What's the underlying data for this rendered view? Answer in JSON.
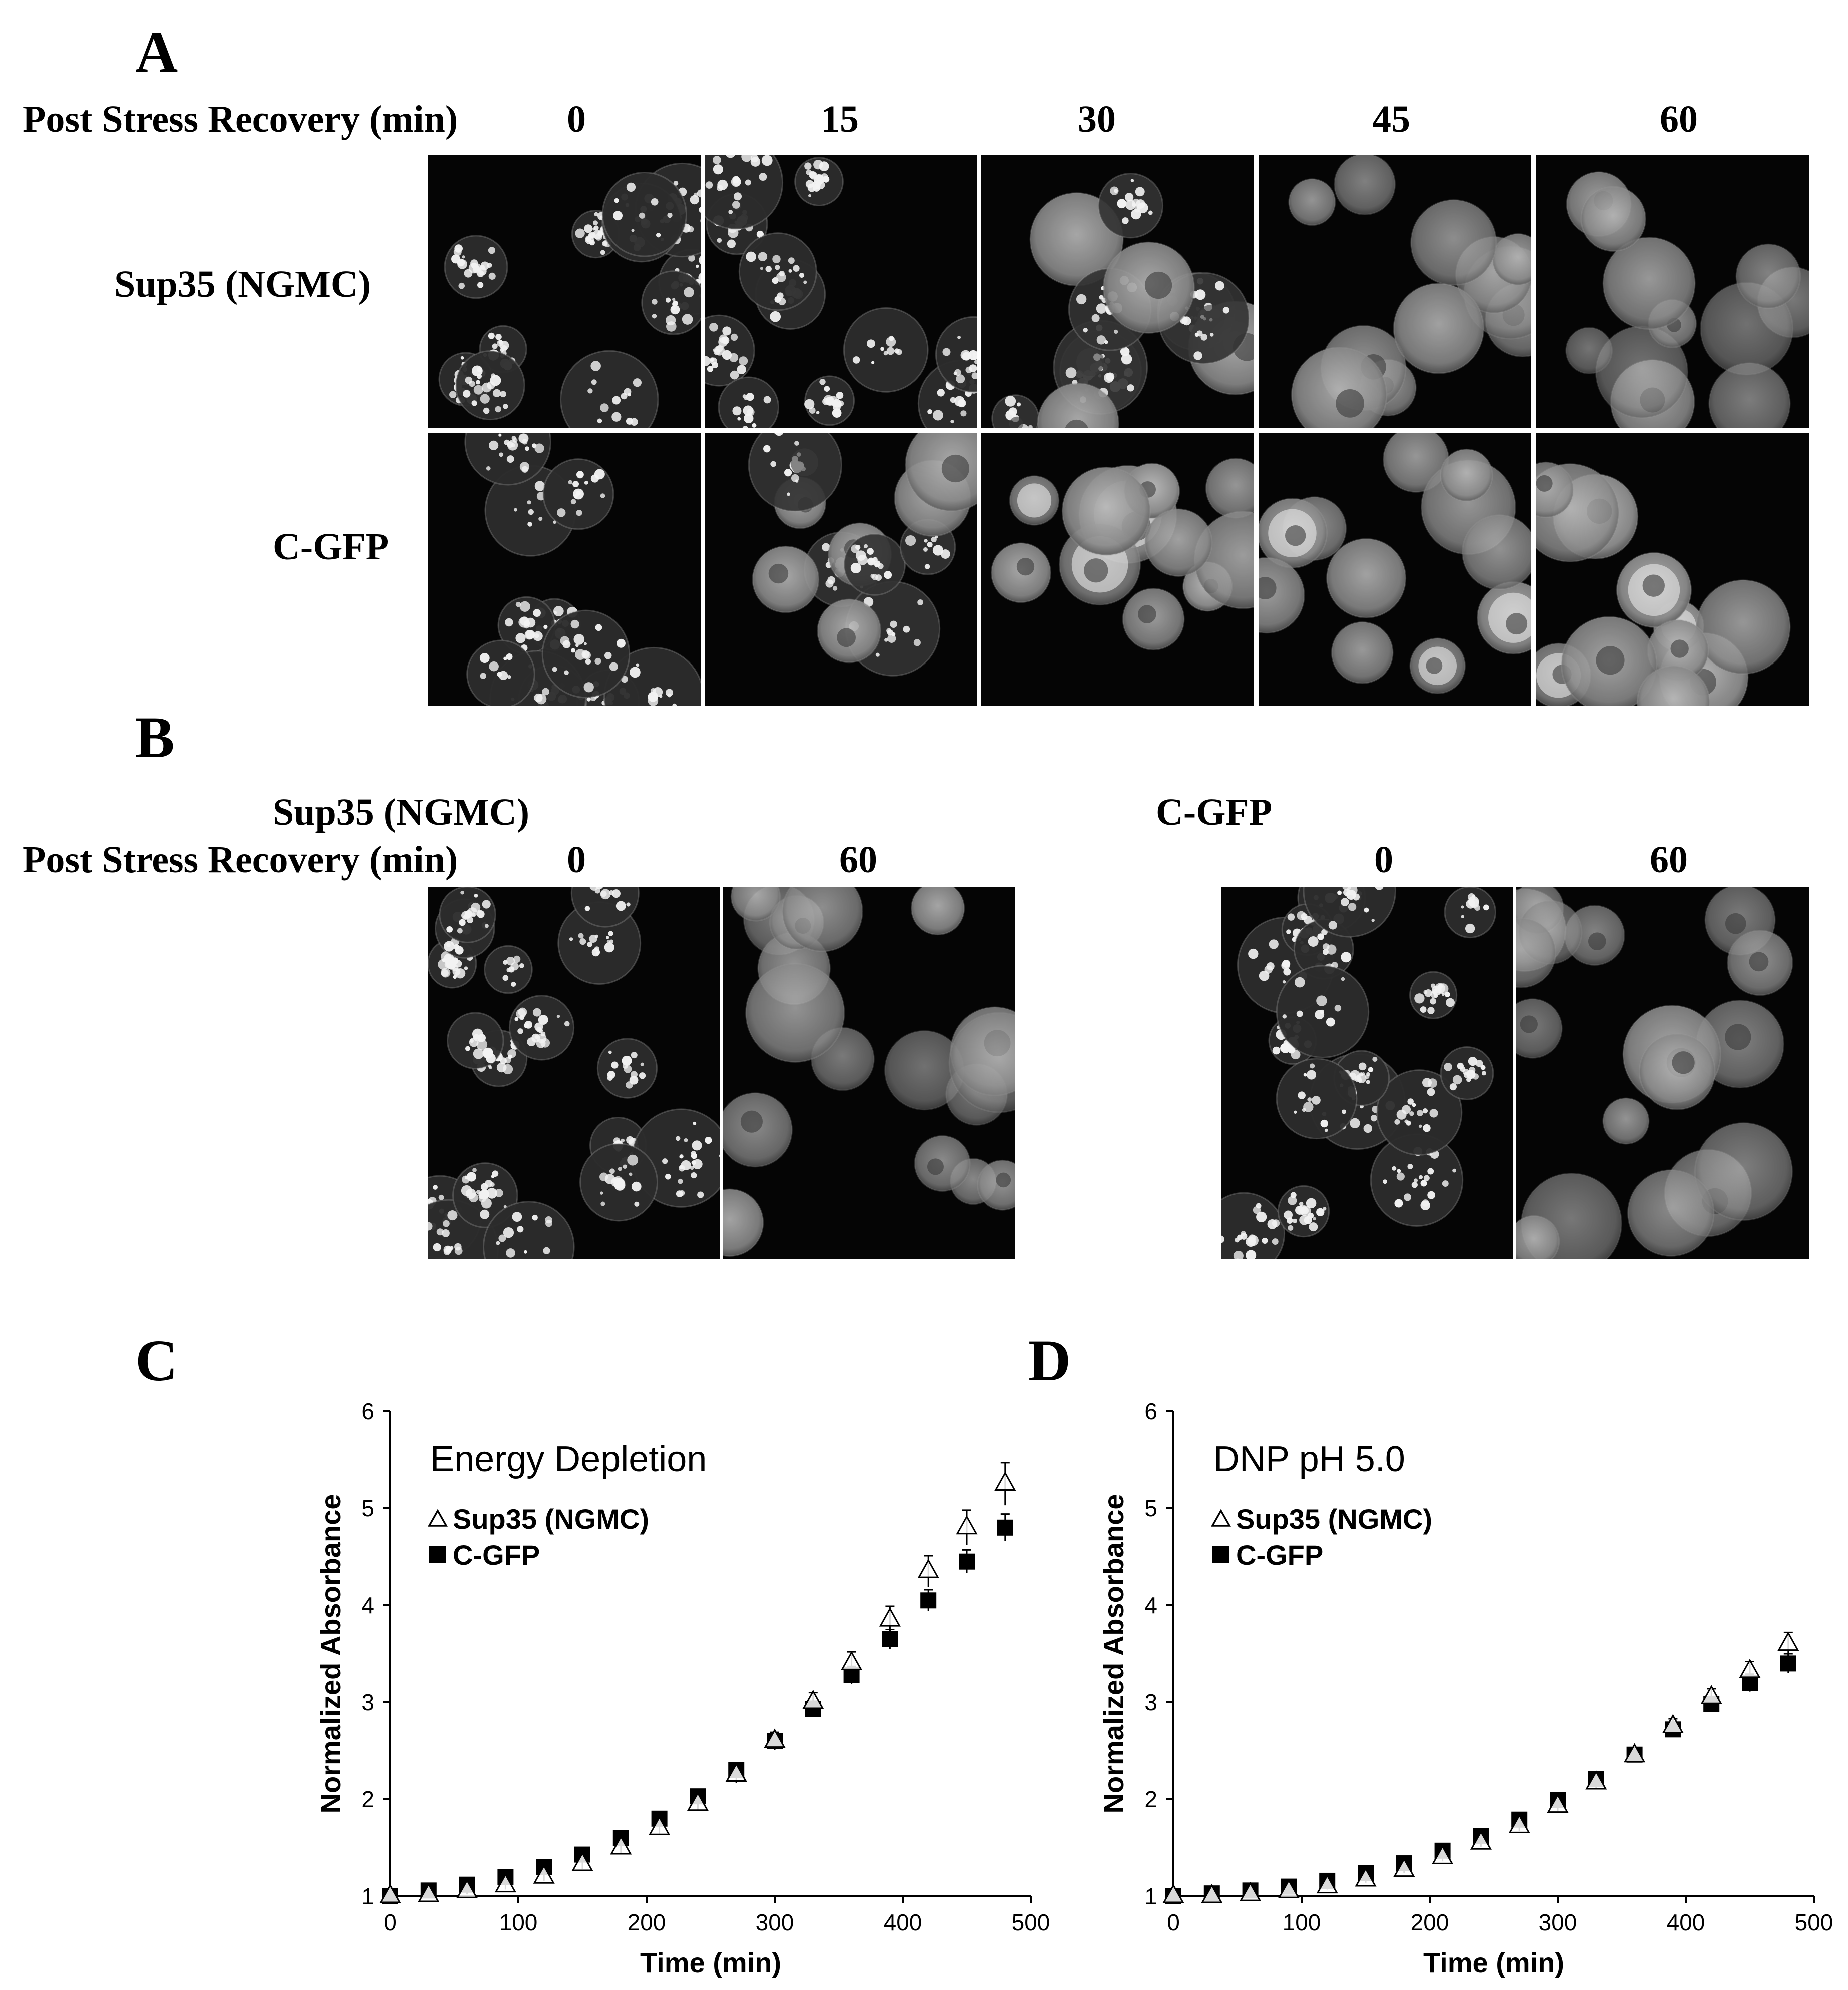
{
  "panel_a": {
    "letter": "A",
    "header_label": "Post Stress Recovery (min)",
    "timepoints": [
      "0",
      "15",
      "30",
      "45",
      "60"
    ],
    "rows": [
      {
        "label": "Sup35 (NGMC)",
        "states": [
          "punctate",
          "punctate",
          "mixed",
          "diffuse",
          "diffuse"
        ]
      },
      {
        "label": "C-GFP",
        "states": [
          "punctate",
          "mixed",
          "diffuse-bright",
          "diffuse-bright",
          "diffuse-bright"
        ]
      }
    ]
  },
  "panel_b": {
    "letter": "B",
    "header_label": "Post Stress Recovery (min)",
    "groups": [
      {
        "title": "Sup35 (NGMC)",
        "timepoints": [
          "0",
          "60"
        ],
        "states": [
          "punctate",
          "diffuse"
        ]
      },
      {
        "title": "C-GFP",
        "timepoints": [
          "0",
          "60"
        ],
        "states": [
          "punctate",
          "diffuse"
        ]
      }
    ]
  },
  "panel_c": {
    "letter": "C"
  },
  "panel_d": {
    "letter": "D"
  },
  "chart_data": [
    {
      "type": "scatter",
      "title": "Energy Depletion",
      "xlabel": "Time (min)",
      "ylabel": "Normalized Absorbance",
      "xlim": [
        0,
        500
      ],
      "ylim": [
        1,
        6
      ],
      "xticks": [
        0,
        100,
        200,
        300,
        400,
        500
      ],
      "yticks": [
        1,
        2,
        3,
        4,
        5,
        6
      ],
      "legend_position": "top-left",
      "series": [
        {
          "name": "Sup35 (NGMC)",
          "marker": "open-triangle",
          "x": [
            0,
            30,
            60,
            90,
            120,
            150,
            180,
            210,
            240,
            270,
            300,
            330,
            360,
            390,
            420,
            450,
            480
          ],
          "y": [
            1.0,
            1.01,
            1.05,
            1.11,
            1.2,
            1.33,
            1.5,
            1.7,
            1.95,
            2.25,
            2.6,
            3.0,
            3.4,
            3.85,
            4.35,
            4.8,
            5.25
          ],
          "err": [
            0,
            0.03,
            0.03,
            0.04,
            0.04,
            0.05,
            0.06,
            0.06,
            0.07,
            0.08,
            0.09,
            0.1,
            0.12,
            0.14,
            0.16,
            0.18,
            0.22
          ]
        },
        {
          "name": "C-GFP",
          "marker": "filled-square",
          "x": [
            0,
            30,
            60,
            90,
            120,
            150,
            180,
            210,
            240,
            270,
            300,
            330,
            360,
            390,
            420,
            450,
            480
          ],
          "y": [
            1.0,
            1.06,
            1.12,
            1.2,
            1.3,
            1.43,
            1.6,
            1.8,
            2.03,
            2.3,
            2.6,
            2.93,
            3.28,
            3.65,
            4.05,
            4.45,
            4.8
          ],
          "err": [
            0,
            0.02,
            0.02,
            0.03,
            0.03,
            0.04,
            0.04,
            0.05,
            0.05,
            0.06,
            0.07,
            0.08,
            0.09,
            0.1,
            0.11,
            0.12,
            0.14
          ]
        }
      ]
    },
    {
      "type": "scatter",
      "title": "DNP pH 5.0",
      "xlabel": "Time (min)",
      "ylabel": "Normalized Absorbance",
      "xlim": [
        0,
        500
      ],
      "ylim": [
        1,
        6
      ],
      "xticks": [
        0,
        100,
        200,
        300,
        400,
        500
      ],
      "yticks": [
        1,
        2,
        3,
        4,
        5,
        6
      ],
      "legend_position": "top-left",
      "series": [
        {
          "name": "Sup35 (NGMC)",
          "marker": "open-triangle",
          "x": [
            0,
            30,
            60,
            90,
            120,
            150,
            180,
            210,
            240,
            270,
            300,
            330,
            360,
            390,
            420,
            450,
            480
          ],
          "y": [
            1.0,
            1.0,
            1.02,
            1.05,
            1.1,
            1.17,
            1.27,
            1.4,
            1.55,
            1.72,
            1.93,
            2.17,
            2.45,
            2.75,
            3.05,
            3.32,
            3.6
          ],
          "err": [
            0,
            0.02,
            0.02,
            0.02,
            0.03,
            0.03,
            0.03,
            0.04,
            0.04,
            0.05,
            0.05,
            0.06,
            0.07,
            0.08,
            0.09,
            0.1,
            0.12
          ]
        },
        {
          "name": "C-GFP",
          "marker": "filled-square",
          "x": [
            0,
            30,
            60,
            90,
            120,
            150,
            180,
            210,
            240,
            270,
            300,
            330,
            360,
            390,
            420,
            450,
            480
          ],
          "y": [
            1.0,
            1.03,
            1.06,
            1.1,
            1.16,
            1.24,
            1.34,
            1.47,
            1.62,
            1.79,
            1.99,
            2.21,
            2.46,
            2.72,
            2.98,
            3.2,
            3.4
          ],
          "err": [
            0,
            0.02,
            0.02,
            0.02,
            0.02,
            0.03,
            0.03,
            0.03,
            0.04,
            0.04,
            0.05,
            0.05,
            0.06,
            0.07,
            0.08,
            0.09,
            0.1
          ]
        }
      ]
    }
  ]
}
